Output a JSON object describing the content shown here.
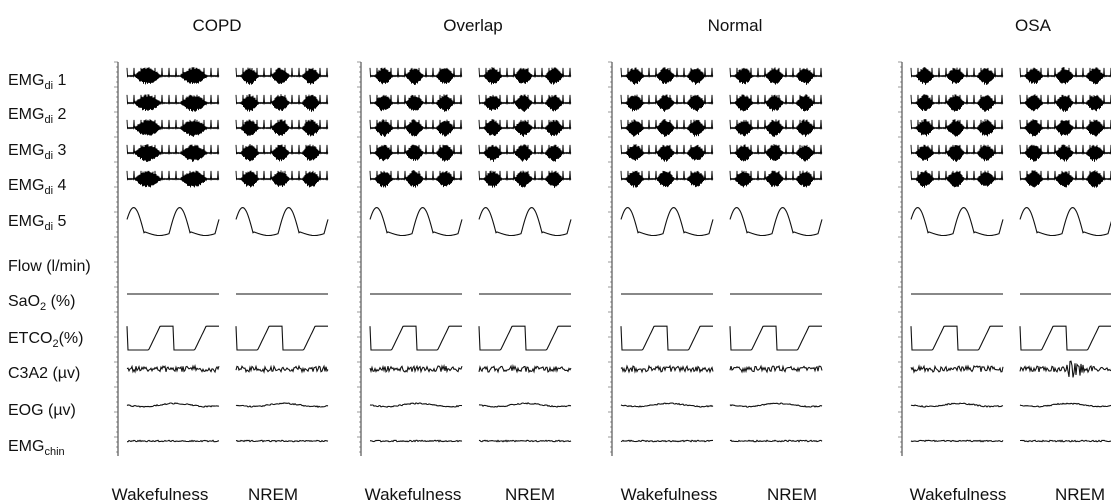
{
  "chart_data": {
    "type": "multi-panel polysomnography traces",
    "title": "",
    "groups": [
      "COPD",
      "Overlap",
      "Normal",
      "OSA"
    ],
    "conditions": [
      "Wakefulness",
      "NREM"
    ],
    "channels": [
      {
        "key": "emg1",
        "base": "EMG",
        "sub": "di",
        "suffix": " 1",
        "kind": "burst"
      },
      {
        "key": "emg2",
        "base": "EMG",
        "sub": "di",
        "suffix": " 2",
        "kind": "burst"
      },
      {
        "key": "emg3",
        "base": "EMG",
        "sub": "di",
        "suffix": " 3",
        "kind": "burst"
      },
      {
        "key": "emg4",
        "base": "EMG",
        "sub": "di",
        "suffix": " 4",
        "kind": "burst"
      },
      {
        "key": "emg5",
        "base": "EMG",
        "sub": "di",
        "suffix": " 5",
        "kind": "burst"
      },
      {
        "key": "flow",
        "base": "Flow (l/min)",
        "sub": "",
        "suffix": "",
        "kind": "flow"
      },
      {
        "key": "sao2",
        "base": "SaO",
        "sub": "2",
        "suffix": " (%)",
        "kind": "flat"
      },
      {
        "key": "etco2",
        "base": "ETCO",
        "sub": "2",
        "suffix": "(%)",
        "kind": "co2"
      },
      {
        "key": "c3a2",
        "base": "C3A2 (µv)",
        "sub": "",
        "suffix": "",
        "kind": "eeg"
      },
      {
        "key": "eog",
        "base": "EOG (µv)",
        "sub": "",
        "suffix": "",
        "kind": "eog"
      },
      {
        "key": "emgchin",
        "base": "EMG",
        "sub": "chin",
        "suffix": "",
        "kind": "chin"
      }
    ],
    "breaths_per_segment": {
      "COPD": [
        2,
        2
      ],
      "Overlap": [
        2,
        2
      ],
      "Normal": [
        2,
        2
      ],
      "OSA": [
        2,
        2
      ]
    }
  }
}
